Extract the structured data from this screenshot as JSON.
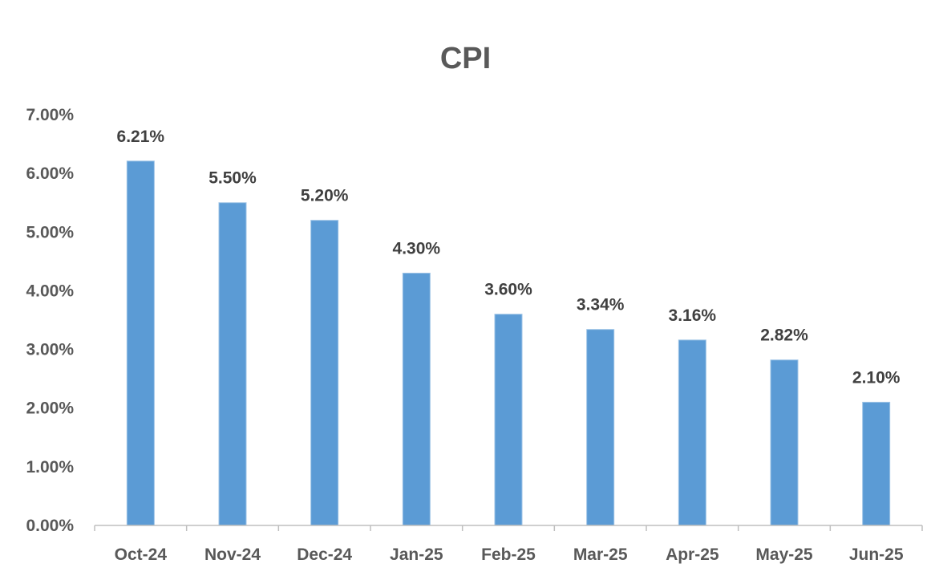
{
  "chart_data": {
    "type": "bar",
    "title": "CPI",
    "categories": [
      "Oct-24",
      "Nov-24",
      "Dec-24",
      "Jan-25",
      "Feb-25",
      "Mar-25",
      "Apr-25",
      "May-25",
      "Jun-25"
    ],
    "values": [
      6.21,
      5.5,
      5.2,
      4.3,
      3.6,
      3.34,
      3.16,
      2.82,
      2.1
    ],
    "data_labels": [
      "6.21%",
      "5.50%",
      "5.20%",
      "4.30%",
      "3.60%",
      "3.34%",
      "3.16%",
      "2.82%",
      "2.10%"
    ],
    "ylim": [
      0,
      7
    ],
    "yticks": [
      0,
      1,
      2,
      3,
      4,
      5,
      6,
      7
    ],
    "ytick_labels": [
      "0.00%",
      "1.00%",
      "2.00%",
      "3.00%",
      "4.00%",
      "5.00%",
      "6.00%",
      "7.00%"
    ],
    "xlabel": "",
    "ylabel": "",
    "grid": false,
    "legend": "none",
    "bar_color": "#5b9bd5"
  }
}
